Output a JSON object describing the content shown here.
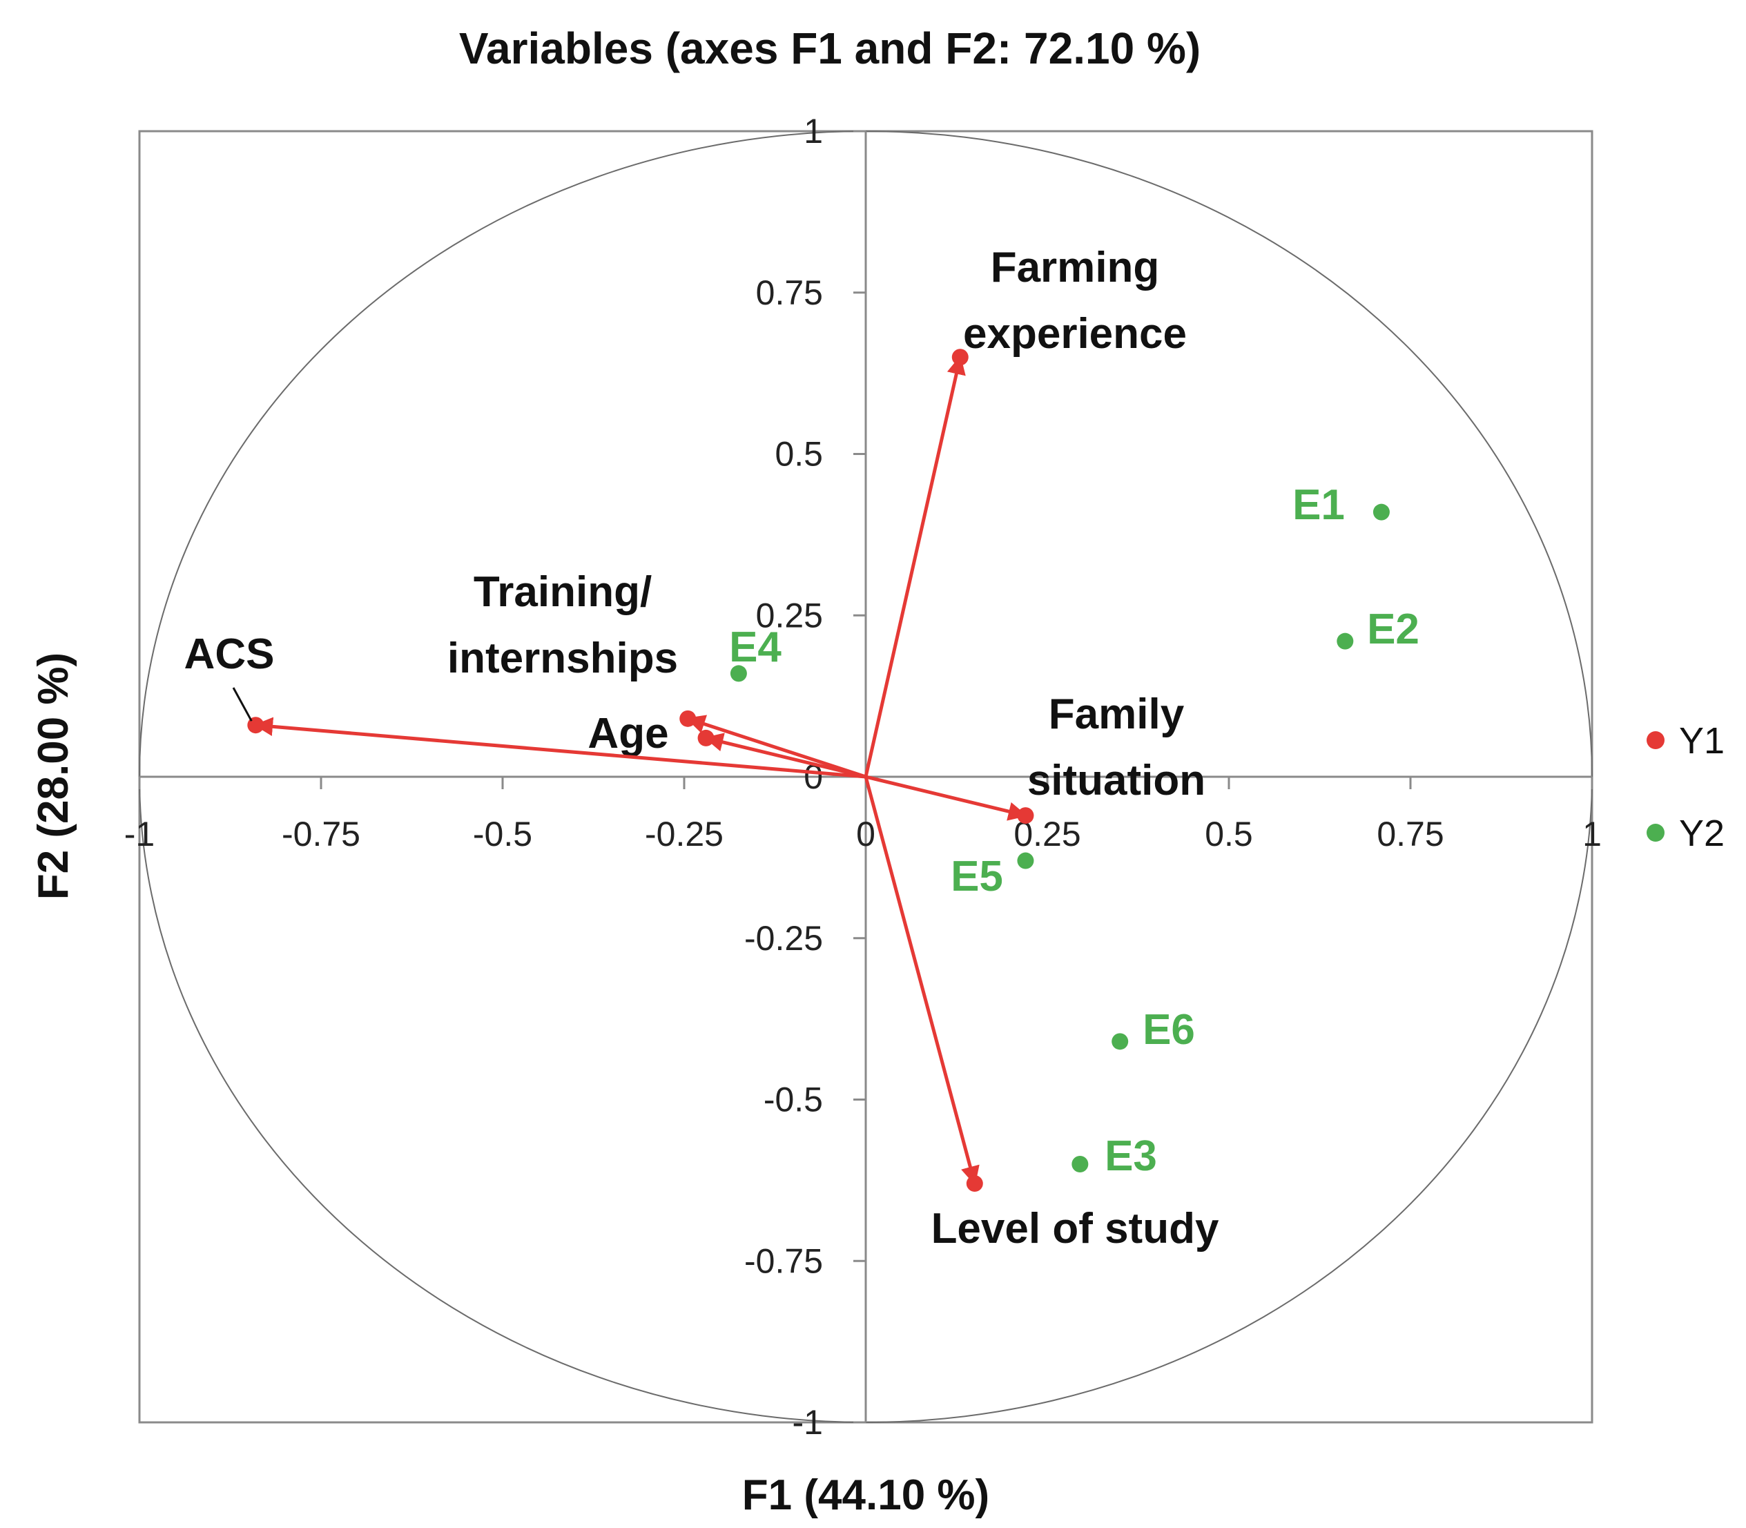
{
  "chart_data": {
    "type": "scatter",
    "title": "Variables (axes F1 and F2: 72.10 %)",
    "xlabel": "F1 (44.10 %)",
    "ylabel": "F2 (28.00 %)",
    "xlim": [
      -1,
      1
    ],
    "ylim": [
      -1,
      1
    ],
    "x_ticks": [
      "-1",
      "-0.75",
      "-0.5",
      "-0.25",
      "0",
      "0.25",
      "0.5",
      "0.75",
      "1"
    ],
    "y_ticks": [
      "1",
      "0.75",
      "0.5",
      "0.25",
      "0",
      "-0.25",
      "-0.5",
      "-0.75",
      "-1"
    ],
    "correlation_circle": true,
    "legend_position": "right",
    "series": [
      {
        "name": "Y1",
        "color": "#e53935",
        "style": "vectors",
        "points": [
          {
            "label": "Farming experience",
            "x": 0.13,
            "y": 0.65
          },
          {
            "label": "Training/ internships",
            "x": -0.245,
            "y": 0.09
          },
          {
            "label": "Age",
            "x": -0.22,
            "y": 0.06
          },
          {
            "label": "ACS",
            "x": -0.84,
            "y": 0.08
          },
          {
            "label": "Family situation",
            "x": 0.22,
            "y": -0.06
          },
          {
            "label": "Level of study",
            "x": 0.15,
            "y": -0.63
          }
        ]
      },
      {
        "name": "Y2",
        "color": "#4caf50",
        "style": "points",
        "points": [
          {
            "label": "E1",
            "x": 0.71,
            "y": 0.41
          },
          {
            "label": "E2",
            "x": 0.66,
            "y": 0.21
          },
          {
            "label": "E4",
            "x": -0.175,
            "y": 0.16
          },
          {
            "label": "E5",
            "x": 0.22,
            "y": -0.13
          },
          {
            "label": "E6",
            "x": 0.35,
            "y": -0.41
          },
          {
            "label": "E3",
            "x": 0.295,
            "y": -0.6
          }
        ]
      }
    ]
  }
}
